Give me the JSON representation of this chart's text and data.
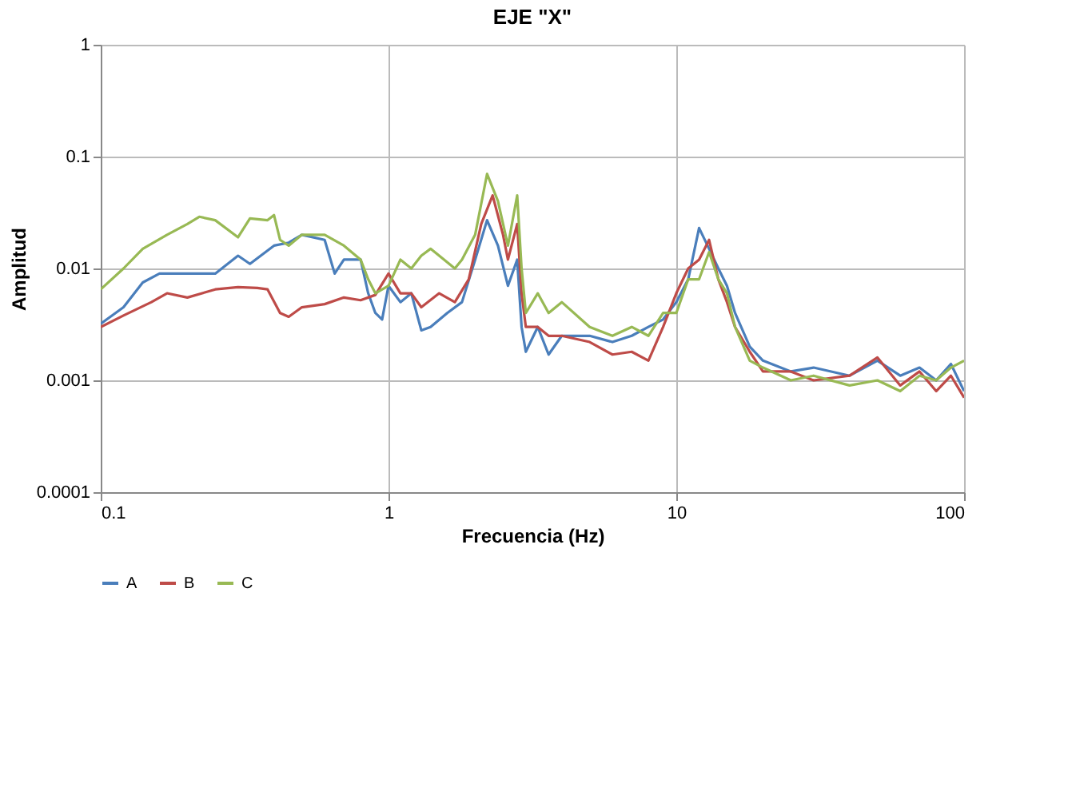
{
  "chart_data": {
    "type": "line",
    "title": "EJE \"X\"",
    "xlabel": "Frecuencia (Hz)",
    "ylabel": "Amplitud",
    "log": "xy",
    "grid": true,
    "legend": "bottom",
    "xlim": [
      0.1,
      100
    ],
    "xticks": [
      0.1,
      1,
      10,
      100
    ],
    "ylim": [
      0.0001,
      1
    ],
    "yticks": [
      0.0001,
      0.001,
      0.01,
      0.1,
      1
    ],
    "series": [
      {
        "name": "A",
        "color": "#4a7ebb",
        "x": [
          0.1,
          0.12,
          0.14,
          0.16,
          0.2,
          0.25,
          0.3,
          0.33,
          0.4,
          0.45,
          0.5,
          0.6,
          0.65,
          0.7,
          0.8,
          0.85,
          0.9,
          0.95,
          1.0,
          1.1,
          1.2,
          1.3,
          1.4,
          1.6,
          1.8,
          2.0,
          2.2,
          2.4,
          2.6,
          2.8,
          2.9,
          3.0,
          3.3,
          3.6,
          4,
          5,
          6,
          7,
          8,
          9,
          10,
          11,
          12,
          13,
          14,
          15,
          16,
          18,
          20,
          25,
          30,
          40,
          50,
          60,
          70,
          80,
          90,
          100
        ],
        "values": [
          0.0032,
          0.0045,
          0.0075,
          0.009,
          0.009,
          0.009,
          0.013,
          0.011,
          0.016,
          0.017,
          0.02,
          0.018,
          0.009,
          0.012,
          0.012,
          0.006,
          0.004,
          0.0035,
          0.007,
          0.005,
          0.006,
          0.0028,
          0.003,
          0.004,
          0.005,
          0.012,
          0.027,
          0.016,
          0.007,
          0.012,
          0.003,
          0.0018,
          0.003,
          0.0017,
          0.0025,
          0.0025,
          0.0022,
          0.0025,
          0.003,
          0.0035,
          0.005,
          0.008,
          0.023,
          0.015,
          0.01,
          0.007,
          0.004,
          0.002,
          0.0015,
          0.0012,
          0.0013,
          0.0011,
          0.0015,
          0.0011,
          0.0013,
          0.001,
          0.0014,
          0.0008
        ]
      },
      {
        "name": "B",
        "color": "#be4b48",
        "x": [
          0.1,
          0.12,
          0.15,
          0.17,
          0.2,
          0.25,
          0.3,
          0.35,
          0.38,
          0.42,
          0.45,
          0.5,
          0.6,
          0.7,
          0.8,
          0.9,
          1.0,
          1.1,
          1.2,
          1.3,
          1.5,
          1.7,
          1.9,
          2.1,
          2.3,
          2.5,
          2.6,
          2.8,
          2.9,
          3.0,
          3.3,
          3.6,
          4,
          5,
          6,
          7,
          8,
          9,
          10,
          11,
          12,
          13,
          14,
          15,
          16,
          18,
          20,
          25,
          30,
          40,
          50,
          60,
          70,
          80,
          90,
          100
        ],
        "values": [
          0.003,
          0.0038,
          0.005,
          0.006,
          0.0055,
          0.0065,
          0.0068,
          0.0067,
          0.0065,
          0.004,
          0.0037,
          0.0045,
          0.0048,
          0.0055,
          0.0052,
          0.0058,
          0.009,
          0.006,
          0.006,
          0.0045,
          0.006,
          0.005,
          0.008,
          0.025,
          0.045,
          0.02,
          0.012,
          0.025,
          0.006,
          0.003,
          0.003,
          0.0025,
          0.0025,
          0.0022,
          0.0017,
          0.0018,
          0.0015,
          0.003,
          0.006,
          0.01,
          0.012,
          0.018,
          0.008,
          0.005,
          0.003,
          0.0018,
          0.0012,
          0.0012,
          0.001,
          0.0011,
          0.0016,
          0.0009,
          0.0012,
          0.0008,
          0.0011,
          0.0007
        ]
      },
      {
        "name": "C",
        "color": "#98b954",
        "x": [
          0.1,
          0.12,
          0.14,
          0.17,
          0.2,
          0.22,
          0.25,
          0.3,
          0.33,
          0.38,
          0.4,
          0.42,
          0.45,
          0.5,
          0.6,
          0.7,
          0.8,
          0.85,
          0.9,
          1.0,
          1.1,
          1.2,
          1.3,
          1.4,
          1.5,
          1.7,
          1.8,
          2.0,
          2.2,
          2.4,
          2.6,
          2.8,
          2.9,
          3.0,
          3.3,
          3.6,
          4,
          5,
          6,
          7,
          8,
          9,
          10,
          11,
          12,
          13,
          14,
          15,
          16,
          18,
          20,
          25,
          30,
          40,
          50,
          60,
          70,
          80,
          90,
          100
        ],
        "values": [
          0.0065,
          0.01,
          0.015,
          0.02,
          0.025,
          0.029,
          0.027,
          0.019,
          0.028,
          0.027,
          0.03,
          0.018,
          0.016,
          0.02,
          0.02,
          0.016,
          0.012,
          0.008,
          0.006,
          0.007,
          0.012,
          0.01,
          0.013,
          0.015,
          0.013,
          0.01,
          0.012,
          0.02,
          0.07,
          0.04,
          0.016,
          0.045,
          0.01,
          0.004,
          0.006,
          0.004,
          0.005,
          0.003,
          0.0025,
          0.003,
          0.0025,
          0.004,
          0.004,
          0.008,
          0.008,
          0.014,
          0.008,
          0.006,
          0.003,
          0.0015,
          0.0013,
          0.001,
          0.0011,
          0.0009,
          0.001,
          0.0008,
          0.0011,
          0.001,
          0.0013,
          0.0015
        ]
      }
    ]
  }
}
